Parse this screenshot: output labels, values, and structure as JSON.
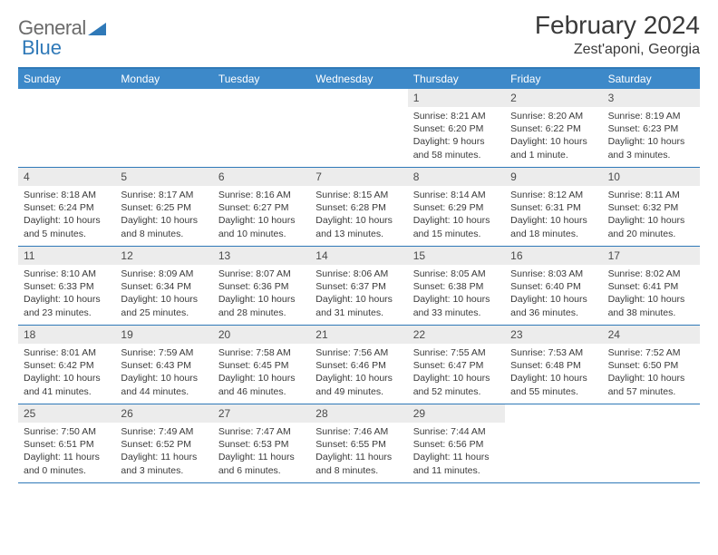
{
  "brand": {
    "name_part1": "General",
    "name_part2": "Blue",
    "text_color": "#6b6b6b",
    "accent_color": "#2f79b8"
  },
  "title": {
    "month": "February 2024",
    "location": "Zest'aponi, Georgia",
    "title_fontsize": 28,
    "location_fontsize": 16
  },
  "colors": {
    "header_bar": "#3d89c9",
    "border": "#2f79b8",
    "daynum_bg": "#ececec",
    "text": "#3a3a3a",
    "background": "#ffffff"
  },
  "layout": {
    "columns": 7,
    "rows": 5,
    "cell_min_height": 86
  },
  "weekdays": [
    "Sunday",
    "Monday",
    "Tuesday",
    "Wednesday",
    "Thursday",
    "Friday",
    "Saturday"
  ],
  "weeks": [
    [
      {
        "empty": true
      },
      {
        "empty": true
      },
      {
        "empty": true
      },
      {
        "empty": true
      },
      {
        "day": "1",
        "sunrise": "Sunrise: 8:21 AM",
        "sunset": "Sunset: 6:20 PM",
        "daylight": "Daylight: 9 hours and 58 minutes."
      },
      {
        "day": "2",
        "sunrise": "Sunrise: 8:20 AM",
        "sunset": "Sunset: 6:22 PM",
        "daylight": "Daylight: 10 hours and 1 minute."
      },
      {
        "day": "3",
        "sunrise": "Sunrise: 8:19 AM",
        "sunset": "Sunset: 6:23 PM",
        "daylight": "Daylight: 10 hours and 3 minutes."
      }
    ],
    [
      {
        "day": "4",
        "sunrise": "Sunrise: 8:18 AM",
        "sunset": "Sunset: 6:24 PM",
        "daylight": "Daylight: 10 hours and 5 minutes."
      },
      {
        "day": "5",
        "sunrise": "Sunrise: 8:17 AM",
        "sunset": "Sunset: 6:25 PM",
        "daylight": "Daylight: 10 hours and 8 minutes."
      },
      {
        "day": "6",
        "sunrise": "Sunrise: 8:16 AM",
        "sunset": "Sunset: 6:27 PM",
        "daylight": "Daylight: 10 hours and 10 minutes."
      },
      {
        "day": "7",
        "sunrise": "Sunrise: 8:15 AM",
        "sunset": "Sunset: 6:28 PM",
        "daylight": "Daylight: 10 hours and 13 minutes."
      },
      {
        "day": "8",
        "sunrise": "Sunrise: 8:14 AM",
        "sunset": "Sunset: 6:29 PM",
        "daylight": "Daylight: 10 hours and 15 minutes."
      },
      {
        "day": "9",
        "sunrise": "Sunrise: 8:12 AM",
        "sunset": "Sunset: 6:31 PM",
        "daylight": "Daylight: 10 hours and 18 minutes."
      },
      {
        "day": "10",
        "sunrise": "Sunrise: 8:11 AM",
        "sunset": "Sunset: 6:32 PM",
        "daylight": "Daylight: 10 hours and 20 minutes."
      }
    ],
    [
      {
        "day": "11",
        "sunrise": "Sunrise: 8:10 AM",
        "sunset": "Sunset: 6:33 PM",
        "daylight": "Daylight: 10 hours and 23 minutes."
      },
      {
        "day": "12",
        "sunrise": "Sunrise: 8:09 AM",
        "sunset": "Sunset: 6:34 PM",
        "daylight": "Daylight: 10 hours and 25 minutes."
      },
      {
        "day": "13",
        "sunrise": "Sunrise: 8:07 AM",
        "sunset": "Sunset: 6:36 PM",
        "daylight": "Daylight: 10 hours and 28 minutes."
      },
      {
        "day": "14",
        "sunrise": "Sunrise: 8:06 AM",
        "sunset": "Sunset: 6:37 PM",
        "daylight": "Daylight: 10 hours and 31 minutes."
      },
      {
        "day": "15",
        "sunrise": "Sunrise: 8:05 AM",
        "sunset": "Sunset: 6:38 PM",
        "daylight": "Daylight: 10 hours and 33 minutes."
      },
      {
        "day": "16",
        "sunrise": "Sunrise: 8:03 AM",
        "sunset": "Sunset: 6:40 PM",
        "daylight": "Daylight: 10 hours and 36 minutes."
      },
      {
        "day": "17",
        "sunrise": "Sunrise: 8:02 AM",
        "sunset": "Sunset: 6:41 PM",
        "daylight": "Daylight: 10 hours and 38 minutes."
      }
    ],
    [
      {
        "day": "18",
        "sunrise": "Sunrise: 8:01 AM",
        "sunset": "Sunset: 6:42 PM",
        "daylight": "Daylight: 10 hours and 41 minutes."
      },
      {
        "day": "19",
        "sunrise": "Sunrise: 7:59 AM",
        "sunset": "Sunset: 6:43 PM",
        "daylight": "Daylight: 10 hours and 44 minutes."
      },
      {
        "day": "20",
        "sunrise": "Sunrise: 7:58 AM",
        "sunset": "Sunset: 6:45 PM",
        "daylight": "Daylight: 10 hours and 46 minutes."
      },
      {
        "day": "21",
        "sunrise": "Sunrise: 7:56 AM",
        "sunset": "Sunset: 6:46 PM",
        "daylight": "Daylight: 10 hours and 49 minutes."
      },
      {
        "day": "22",
        "sunrise": "Sunrise: 7:55 AM",
        "sunset": "Sunset: 6:47 PM",
        "daylight": "Daylight: 10 hours and 52 minutes."
      },
      {
        "day": "23",
        "sunrise": "Sunrise: 7:53 AM",
        "sunset": "Sunset: 6:48 PM",
        "daylight": "Daylight: 10 hours and 55 minutes."
      },
      {
        "day": "24",
        "sunrise": "Sunrise: 7:52 AM",
        "sunset": "Sunset: 6:50 PM",
        "daylight": "Daylight: 10 hours and 57 minutes."
      }
    ],
    [
      {
        "day": "25",
        "sunrise": "Sunrise: 7:50 AM",
        "sunset": "Sunset: 6:51 PM",
        "daylight": "Daylight: 11 hours and 0 minutes."
      },
      {
        "day": "26",
        "sunrise": "Sunrise: 7:49 AM",
        "sunset": "Sunset: 6:52 PM",
        "daylight": "Daylight: 11 hours and 3 minutes."
      },
      {
        "day": "27",
        "sunrise": "Sunrise: 7:47 AM",
        "sunset": "Sunset: 6:53 PM",
        "daylight": "Daylight: 11 hours and 6 minutes."
      },
      {
        "day": "28",
        "sunrise": "Sunrise: 7:46 AM",
        "sunset": "Sunset: 6:55 PM",
        "daylight": "Daylight: 11 hours and 8 minutes."
      },
      {
        "day": "29",
        "sunrise": "Sunrise: 7:44 AM",
        "sunset": "Sunset: 6:56 PM",
        "daylight": "Daylight: 11 hours and 11 minutes."
      },
      {
        "empty": true
      },
      {
        "empty": true
      }
    ]
  ]
}
